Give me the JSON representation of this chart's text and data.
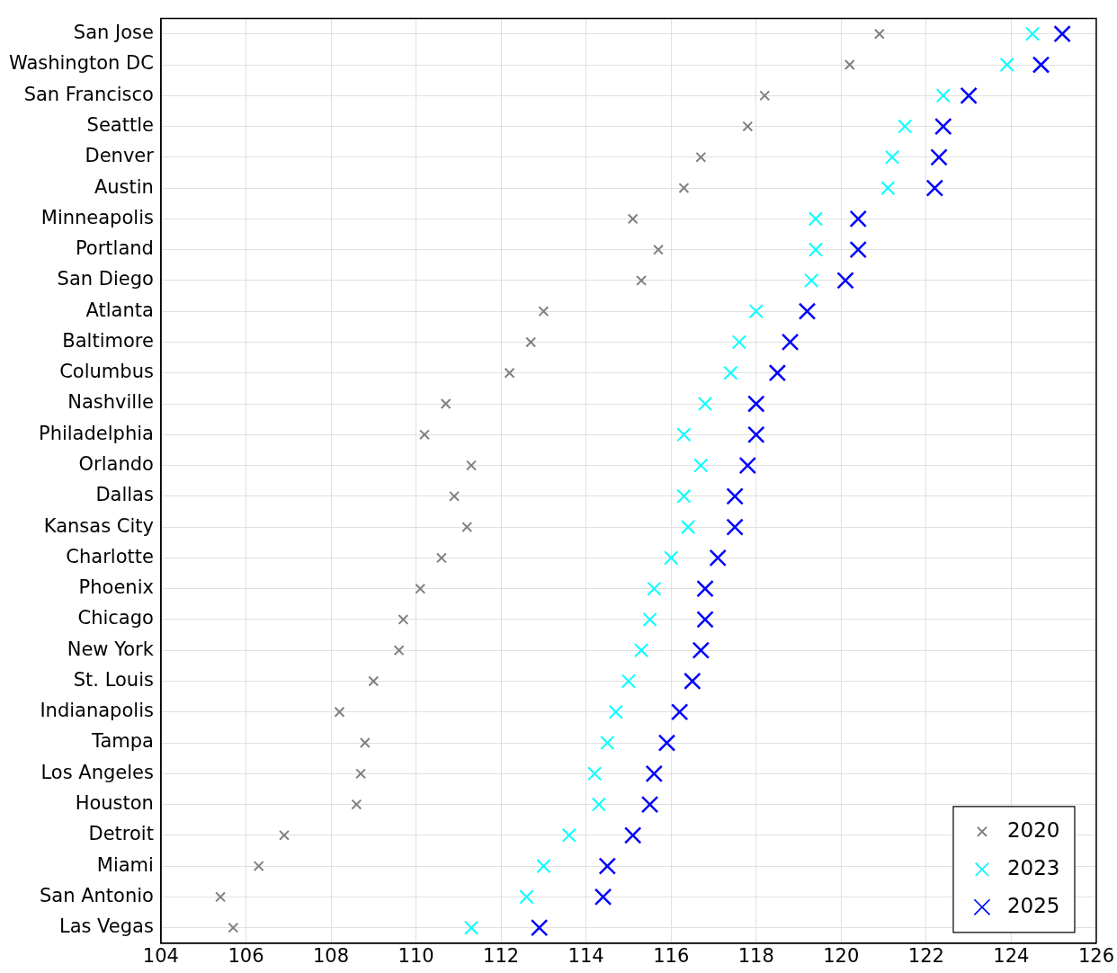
{
  "chart_data": {
    "type": "scatter",
    "categories": [
      "San Jose",
      "Washington DC",
      "San Francisco",
      "Seattle",
      "Denver",
      "Austin",
      "Minneapolis",
      "Portland",
      "San Diego",
      "Atlanta",
      "Baltimore",
      "Columbus",
      "Nashville",
      "Philadelphia",
      "Orlando",
      "Dallas",
      "Kansas City",
      "Charlotte",
      "Phoenix",
      "Chicago",
      "New York",
      "St. Louis",
      "Indianapolis",
      "Tampa",
      "Los Angeles",
      "Houston",
      "Detroit",
      "Miami",
      "San Antonio",
      "Las Vegas"
    ],
    "orientation": "horizontal",
    "series": [
      {
        "name": "2020",
        "color": "#808080",
        "values": [
          120.9,
          120.2,
          118.2,
          117.8,
          116.7,
          116.3,
          115.1,
          115.7,
          115.3,
          113.0,
          112.7,
          112.2,
          110.7,
          110.2,
          111.3,
          110.9,
          111.2,
          110.6,
          110.1,
          109.7,
          109.6,
          109.0,
          108.2,
          108.8,
          108.7,
          108.6,
          106.9,
          106.3,
          105.4,
          105.7
        ]
      },
      {
        "name": "2023",
        "color": "#00ffff",
        "values": [
          124.5,
          123.9,
          122.4,
          121.5,
          121.2,
          121.1,
          119.4,
          119.4,
          119.3,
          118.0,
          117.6,
          117.4,
          116.8,
          116.3,
          116.7,
          116.3,
          116.4,
          116.0,
          115.6,
          115.5,
          115.3,
          115.0,
          114.7,
          114.5,
          114.2,
          114.3,
          113.6,
          113.0,
          112.6,
          111.3
        ]
      },
      {
        "name": "2025",
        "color": "#0000ff",
        "values": [
          125.2,
          124.7,
          123.0,
          122.4,
          122.3,
          122.2,
          120.4,
          120.4,
          120.1,
          119.2,
          118.8,
          118.5,
          118.0,
          118.0,
          117.8,
          117.5,
          117.5,
          117.1,
          116.8,
          116.8,
          116.7,
          116.5,
          116.2,
          115.9,
          115.6,
          115.5,
          115.1,
          114.5,
          114.4,
          112.9
        ]
      }
    ],
    "xlim": [
      104,
      126
    ],
    "xticks": [
      104,
      106,
      108,
      110,
      112,
      114,
      116,
      118,
      120,
      122,
      124,
      126
    ],
    "grid": true,
    "legend": "bottom right",
    "marker": "cross"
  }
}
